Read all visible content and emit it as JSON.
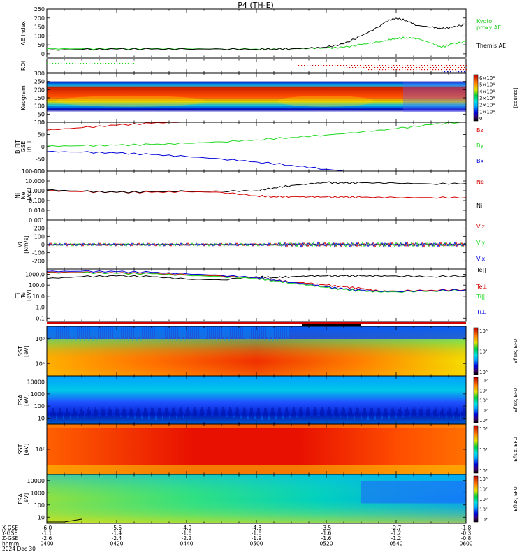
{
  "title": "P4 (TH-E)",
  "colors": {
    "black": "#000000",
    "red": "#d40000",
    "green": "#1fd81f",
    "blue": "#0000d8",
    "bright_green": "#22cc22"
  },
  "colorbars": {
    "keogram": {
      "unit": "[counts]",
      "ticks": [
        "6×10⁴",
        "5×10⁴",
        "4×10⁴",
        "3×10⁴",
        "2×10⁴",
        "1×10⁴",
        "0"
      ]
    },
    "sst_ion": {
      "unit": "Eflux, EFU",
      "ticks": [
        "10⁸",
        "10⁴",
        "10⁶"
      ]
    },
    "esa_ion": {
      "unit": "Eflux, EFU",
      "ticks": [
        "10⁸",
        "10⁷",
        "10⁶",
        "10⁵",
        "10⁴"
      ]
    },
    "sst_elec": {
      "unit": "Eflux, EFU",
      "ticks": [
        "10⁸",
        "10⁴",
        "10⁶"
      ]
    },
    "esa_elec": {
      "unit": "Eflux, EFU",
      "ticks": [
        "10⁸",
        "10⁷",
        "10⁶",
        "10⁵",
        "10⁴"
      ]
    }
  },
  "footer": {
    "row_labels": [
      "X-GSE",
      "Y-GSE",
      "Z-GSE",
      "hhmm",
      "2024 Dec 30"
    ],
    "x_gse": [
      "-6.0",
      "-5.5",
      "-4.9",
      "-4.3",
      "-3.5",
      "-2.7",
      "-1.8"
    ],
    "y_gse": [
      "-1.1",
      "-1.4",
      "-1.6",
      "-1.6",
      "-1.6",
      "-1.2",
      "-0.3"
    ],
    "z_gse": [
      "-2.6",
      "-2.4",
      "-2.2",
      "-1.9",
      "-1.6",
      "-1.2",
      "-0.8"
    ],
    "hhmm": [
      "0400",
      "0420",
      "0440",
      "0500",
      "0520",
      "0540",
      "0600"
    ]
  },
  "chart_data": [
    {
      "panel": "ae_index",
      "type": "line",
      "ylabel": "AE index",
      "ylim": [
        -20,
        250
      ],
      "yticks": [
        "250",
        "200",
        "150",
        "100",
        "50",
        "0"
      ],
      "x": [
        "0400",
        "0410",
        "0420",
        "0430",
        "0440",
        "0450",
        "0500",
        "0505",
        "0510",
        "0515",
        "0520",
        "0525",
        "0530",
        "0535",
        "0537",
        "0540",
        "0543",
        "0546",
        "0550",
        "0553",
        "0556",
        "0600"
      ],
      "series": [
        {
          "name": "Kyoto proxy AE",
          "label": [
            "Kyoto",
            "proxy AE"
          ],
          "color": "green",
          "values": [
            28,
            28,
            28,
            28,
            28,
            27,
            27,
            28,
            28,
            30,
            32,
            36,
            52,
            66,
            74,
            86,
            90,
            86,
            60,
            36,
            55,
            68
          ]
        },
        {
          "name": "Themis AE",
          "label": [
            "Themis AE"
          ],
          "color": "black",
          "values": [
            20,
            24,
            26,
            26,
            26,
            27,
            25,
            27,
            28,
            32,
            36,
            56,
            100,
            150,
            180,
            200,
            185,
            158,
            150,
            140,
            148,
            165
          ]
        }
      ]
    },
    {
      "panel": "roi",
      "type": "scatter",
      "ylabel": "ROI",
      "series": [
        {
          "name": "ROI-1",
          "color": "green",
          "x": [
            "0400",
            "0425"
          ],
          "row": 1
        },
        {
          "name": "ROI-2",
          "color": "red",
          "x": [
            "0512",
            "0600"
          ],
          "row": 2
        },
        {
          "name": "ROI-3",
          "color": "red",
          "x": [
            "0525",
            "0600"
          ],
          "row": 3
        },
        {
          "name": "ROI-4",
          "color": "red",
          "x": [
            "0532",
            "0600"
          ],
          "row": 4
        },
        {
          "name": "ROI-5",
          "color": "blue",
          "x": [
            "0553",
            "0600"
          ],
          "row": 5
        }
      ]
    },
    {
      "panel": "keogram",
      "type": "heatmap",
      "ylabel": "Keogram",
      "ylim": [
        0,
        300
      ],
      "yticks": [
        "300",
        "250",
        "200",
        "150",
        "100",
        "50",
        "0"
      ],
      "colorbar": "keogram"
    },
    {
      "panel": "b_field",
      "type": "line",
      "ylabel": [
        "B FIT",
        "GSE",
        "[nT]"
      ],
      "ylim": [
        -100,
        100
      ],
      "yticks": [
        "100",
        "50",
        "0",
        "-50",
        "-100"
      ],
      "x": [
        "0400",
        "0410",
        "0420",
        "0430",
        "0440",
        "0450",
        "0500",
        "0510",
        "0520",
        "0530",
        "0540",
        "0550",
        "0600"
      ],
      "series": [
        {
          "name": "Bz",
          "color": "red",
          "values": [
            68,
            78,
            88,
            96,
            104,
            null,
            null,
            null,
            null,
            null,
            null,
            null,
            null
          ]
        },
        {
          "name": "By",
          "color": "green",
          "values": [
            2,
            4,
            6,
            9,
            14,
            20,
            28,
            38,
            48,
            60,
            74,
            90,
            104
          ]
        },
        {
          "name": "Bx",
          "color": "blue",
          "values": [
            -20,
            -22,
            -26,
            -32,
            -40,
            -50,
            -62,
            -76,
            -92,
            -108,
            null,
            null,
            null
          ]
        }
      ]
    },
    {
      "panel": "density",
      "type": "line",
      "ylabel": [
        "Ni",
        "Ne",
        "[1/cc]"
      ],
      "yscale": "log",
      "ylim": [
        0.001,
        100
      ],
      "yticks": [
        "100.000",
        "10.000",
        "1.000",
        "0.100",
        "0.010",
        "0.001"
      ],
      "x": [
        "0400",
        "0410",
        "0420",
        "0430",
        "0440",
        "0450",
        "0500",
        "0505",
        "0510",
        "0515",
        "0520",
        "0525",
        "0530",
        "0540",
        "0550",
        "0600"
      ],
      "series": [
        {
          "name": "Ne",
          "color": "red",
          "values": [
            1.0,
            0.8,
            0.7,
            0.7,
            0.8,
            0.7,
            0.3,
            0.25,
            0.25,
            0.24,
            0.23,
            0.22,
            0.22,
            0.2,
            0.2,
            0.2
          ]
        },
        {
          "name": "Ni",
          "color": "black",
          "values": [
            1.2,
            0.9,
            0.7,
            0.8,
            0.9,
            0.9,
            1.0,
            2.0,
            3.5,
            5.0,
            7.0,
            6.0,
            6.5,
            6.0,
            5.0,
            5.5
          ]
        }
      ]
    },
    {
      "panel": "velocity",
      "type": "line",
      "ylabel": [
        "Vi",
        "[km/s]"
      ],
      "ylim": [
        -300,
        300
      ],
      "yticks": [
        "200",
        "100",
        "0",
        "-100",
        "-200"
      ],
      "x": [
        "0400",
        "0600"
      ],
      "series": [
        {
          "name": "Viz",
          "color": "red",
          "values": [
            0,
            0
          ]
        },
        {
          "name": "Viy",
          "color": "green",
          "values": [
            0,
            0
          ]
        },
        {
          "name": "Vix",
          "color": "blue",
          "values": [
            0,
            0
          ]
        }
      ]
    },
    {
      "panel": "temperature",
      "type": "line",
      "ylabel": [
        "Ti",
        "Te",
        "[eV]"
      ],
      "yscale": "log",
      "ylim": [
        0.05,
        3000
      ],
      "yticks": [
        "1000.0",
        "100.0",
        "10.0",
        "1.0",
        "0.1"
      ],
      "x": [
        "0400",
        "0410",
        "0420",
        "0430",
        "0440",
        "0450",
        "0500",
        "0505",
        "0510",
        "0515",
        "0520",
        "0525",
        "0530",
        "0535",
        "0540",
        "0550",
        "0600"
      ],
      "series": [
        {
          "name": "Te||",
          "label": "Te||",
          "color": "black",
          "values": [
            400,
            600,
            700,
            600,
            350,
            300,
            600,
            500,
            600,
            700,
            700,
            700,
            700,
            700,
            700,
            600,
            700
          ]
        },
        {
          "name": "Te⊥",
          "label": "Te⊥",
          "color": "red",
          "values": [
            1500,
            1500,
            1300,
            1200,
            900,
            700,
            500,
            300,
            200,
            150,
            100,
            70,
            50,
            30,
            30,
            35,
            40
          ]
        },
        {
          "name": "Ti||",
          "label": "Ti||",
          "color": "green",
          "values": [
            1300,
            1400,
            1200,
            1100,
            800,
            600,
            400,
            250,
            150,
            100,
            60,
            40,
            30,
            25,
            25,
            30,
            35
          ]
        },
        {
          "name": "Ti⊥",
          "label": "Ti⊥",
          "color": "blue",
          "values": [
            1800,
            1900,
            1700,
            1500,
            1100,
            800,
            500,
            300,
            180,
            120,
            70,
            45,
            35,
            28,
            28,
            32,
            38
          ]
        }
      ]
    },
    {
      "panel": "mode_bar",
      "type": "bar"
    },
    {
      "panel": "sst_ion",
      "type": "heatmap",
      "ylabel": [
        "SST",
        "[eV]"
      ],
      "yticks": [
        "10⁶",
        "10⁵"
      ],
      "colorbar": "sst_ion"
    },
    {
      "panel": "esa_ion",
      "type": "heatmap",
      "ylabel": [
        "ESA",
        "[eV]"
      ],
      "yticks": [
        "10000",
        "1000",
        "100",
        "10"
      ],
      "colorbar": "esa_ion"
    },
    {
      "panel": "sst_elec",
      "type": "heatmap",
      "ylabel": [
        "SST",
        "[eV]"
      ],
      "yticks": [
        "10⁵"
      ],
      "colorbar": "sst_elec"
    },
    {
      "panel": "esa_elec",
      "type": "heatmap",
      "ylabel": [
        "ESA",
        "[eV]"
      ],
      "yticks": [
        "10000",
        "1000",
        "100",
        "10"
      ],
      "colorbar": "esa_elec"
    }
  ]
}
